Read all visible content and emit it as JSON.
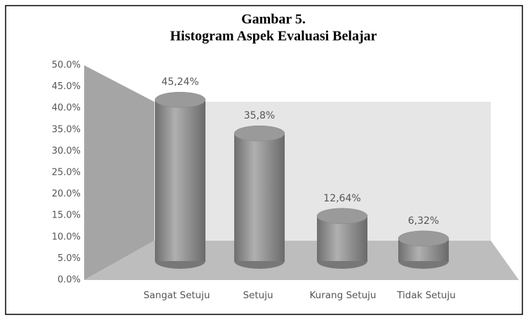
{
  "chart_data": {
    "type": "bar3d",
    "title": "Gambar 5.",
    "subtitle": "Histogram Aspek Evaluasi Belajar",
    "categories": [
      "Sangat Setuju",
      "Setuju",
      "Kurang Setuju",
      "Tidak Setuju"
    ],
    "values": [
      45.24,
      35.8,
      12.64,
      6.32
    ],
    "value_labels": [
      "45,24%",
      "35,8%",
      "12,64%",
      "6,32%"
    ],
    "color": "#9a9a9a",
    "ylim": [
      0,
      50
    ],
    "yticks": [
      {
        "value": 0,
        "label": "0.0%"
      },
      {
        "value": 5,
        "label": "5.0%"
      },
      {
        "value": 10,
        "label": "10.0%"
      },
      {
        "value": 15,
        "label": "15.0%"
      },
      {
        "value": 20,
        "label": "20.0%"
      },
      {
        "value": 25,
        "label": "25.0%"
      },
      {
        "value": 30,
        "label": "30.0%"
      },
      {
        "value": 35,
        "label": "35.0%"
      },
      {
        "value": 40,
        "label": "40.0%"
      },
      {
        "value": 45,
        "label": "45.0%"
      },
      {
        "value": 50,
        "label": "50.0%"
      }
    ]
  }
}
